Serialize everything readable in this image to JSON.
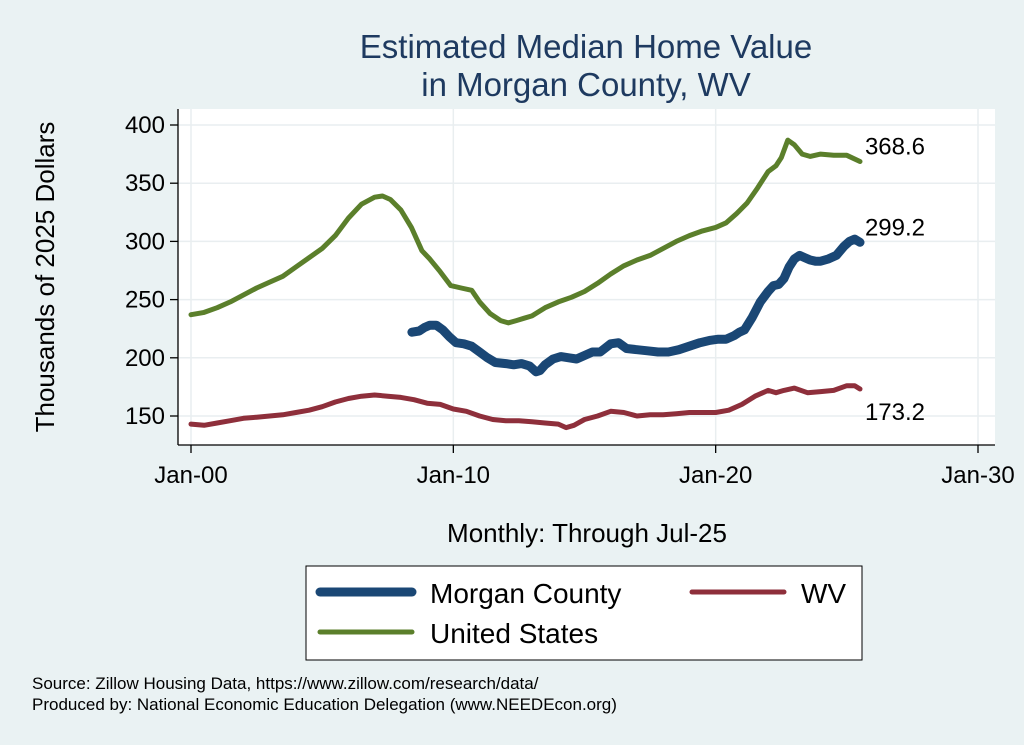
{
  "chart_data": {
    "type": "line",
    "title": [
      "Estimated Median Home Value",
      "in Morgan County, WV"
    ],
    "xlabel": "Monthly: Through Jul-25",
    "ylabel": "Thousands of 2025 Dollars",
    "x_ticks": [
      {
        "label": "Jan-00",
        "year": 2000
      },
      {
        "label": "Jan-10",
        "year": 2010
      },
      {
        "label": "Jan-20",
        "year": 2020
      },
      {
        "label": "Jan-30",
        "year": 2030
      }
    ],
    "y_ticks": [
      150,
      200,
      250,
      300,
      350,
      400
    ],
    "xlim": [
      1999.5,
      2030.1
    ],
    "ylim": [
      130,
      413
    ],
    "grid": true,
    "legend_position": "bottom",
    "series": [
      {
        "name": "Morgan County",
        "color": "#1a4775",
        "width": 9,
        "end_label": "299.2",
        "points": [
          [
            2008.42,
            222
          ],
          [
            2008.7,
            223
          ],
          [
            2008.9,
            226
          ],
          [
            2009.1,
            228
          ],
          [
            2009.35,
            228
          ],
          [
            2009.6,
            224
          ],
          [
            2009.85,
            218
          ],
          [
            2010.1,
            213
          ],
          [
            2010.4,
            212
          ],
          [
            2010.7,
            210
          ],
          [
            2011.0,
            205
          ],
          [
            2011.3,
            200
          ],
          [
            2011.6,
            196
          ],
          [
            2012.0,
            195
          ],
          [
            2012.3,
            194
          ],
          [
            2012.6,
            195
          ],
          [
            2012.9,
            193
          ],
          [
            2013.15,
            188
          ],
          [
            2013.3,
            189
          ],
          [
            2013.5,
            194
          ],
          [
            2013.8,
            199
          ],
          [
            2014.1,
            201
          ],
          [
            2014.4,
            200
          ],
          [
            2014.7,
            199
          ],
          [
            2015.0,
            202
          ],
          [
            2015.3,
            205
          ],
          [
            2015.6,
            205
          ],
          [
            2016.0,
            212
          ],
          [
            2016.3,
            213
          ],
          [
            2016.6,
            208
          ],
          [
            2017.0,
            207
          ],
          [
            2017.4,
            206
          ],
          [
            2017.8,
            205
          ],
          [
            2018.2,
            205
          ],
          [
            2018.6,
            207
          ],
          [
            2019.0,
            210
          ],
          [
            2019.4,
            213
          ],
          [
            2019.8,
            215
          ],
          [
            2020.1,
            216
          ],
          [
            2020.4,
            216
          ],
          [
            2020.7,
            219
          ],
          [
            2020.9,
            222
          ],
          [
            2021.1,
            224
          ],
          [
            2021.4,
            235
          ],
          [
            2021.7,
            248
          ],
          [
            2022.0,
            257
          ],
          [
            2022.2,
            262
          ],
          [
            2022.4,
            263
          ],
          [
            2022.6,
            268
          ],
          [
            2022.8,
            278
          ],
          [
            2023.0,
            285
          ],
          [
            2023.2,
            288
          ],
          [
            2023.4,
            286
          ],
          [
            2023.6,
            284
          ],
          [
            2023.8,
            283
          ],
          [
            2024.0,
            283
          ],
          [
            2024.3,
            285
          ],
          [
            2024.6,
            288
          ],
          [
            2024.9,
            296
          ],
          [
            2025.1,
            300
          ],
          [
            2025.3,
            302
          ],
          [
            2025.5,
            299.2
          ]
        ]
      },
      {
        "name": "WV",
        "color": "#8e2f3b",
        "width": 5,
        "end_label": "173.2",
        "points": [
          [
            2000.0,
            143
          ],
          [
            2000.5,
            142
          ],
          [
            2001.0,
            144
          ],
          [
            2001.5,
            146
          ],
          [
            2002.0,
            148
          ],
          [
            2002.5,
            149
          ],
          [
            2003.0,
            150
          ],
          [
            2003.5,
            151
          ],
          [
            2004.0,
            153
          ],
          [
            2004.5,
            155
          ],
          [
            2005.0,
            158
          ],
          [
            2005.5,
            162
          ],
          [
            2006.0,
            165
          ],
          [
            2006.5,
            167
          ],
          [
            2007.0,
            168
          ],
          [
            2007.5,
            167
          ],
          [
            2008.0,
            166
          ],
          [
            2008.5,
            164
          ],
          [
            2009.0,
            161
          ],
          [
            2009.5,
            160
          ],
          [
            2010.0,
            156
          ],
          [
            2010.5,
            154
          ],
          [
            2011.0,
            150
          ],
          [
            2011.5,
            147
          ],
          [
            2012.0,
            146
          ],
          [
            2012.5,
            146
          ],
          [
            2013.0,
            145
          ],
          [
            2013.5,
            144
          ],
          [
            2014.0,
            143
          ],
          [
            2014.3,
            140
          ],
          [
            2014.6,
            142
          ],
          [
            2015.0,
            147
          ],
          [
            2015.5,
            150
          ],
          [
            2016.0,
            154
          ],
          [
            2016.5,
            153
          ],
          [
            2017.0,
            150
          ],
          [
            2017.5,
            151
          ],
          [
            2018.0,
            151
          ],
          [
            2018.5,
            152
          ],
          [
            2019.0,
            153
          ],
          [
            2019.5,
            153
          ],
          [
            2020.0,
            153
          ],
          [
            2020.5,
            155
          ],
          [
            2021.0,
            160
          ],
          [
            2021.5,
            167
          ],
          [
            2022.0,
            172
          ],
          [
            2022.3,
            170
          ],
          [
            2022.6,
            172
          ],
          [
            2023.0,
            174
          ],
          [
            2023.5,
            170
          ],
          [
            2024.0,
            171
          ],
          [
            2024.5,
            172
          ],
          [
            2025.0,
            176
          ],
          [
            2025.3,
            176
          ],
          [
            2025.5,
            173.2
          ]
        ]
      },
      {
        "name": "United States",
        "color": "#5b7f2b",
        "width": 5,
        "end_label": "368.6",
        "points": [
          [
            2000.0,
            237
          ],
          [
            2000.5,
            239
          ],
          [
            2001.0,
            243
          ],
          [
            2001.5,
            248
          ],
          [
            2002.0,
            254
          ],
          [
            2002.5,
            260
          ],
          [
            2003.0,
            265
          ],
          [
            2003.5,
            270
          ],
          [
            2004.0,
            278
          ],
          [
            2004.5,
            286
          ],
          [
            2005.0,
            294
          ],
          [
            2005.5,
            305
          ],
          [
            2006.0,
            320
          ],
          [
            2006.5,
            332
          ],
          [
            2007.0,
            338
          ],
          [
            2007.3,
            339
          ],
          [
            2007.6,
            336
          ],
          [
            2008.0,
            327
          ],
          [
            2008.4,
            312
          ],
          [
            2008.8,
            292
          ],
          [
            2009.1,
            285
          ],
          [
            2009.5,
            274
          ],
          [
            2009.9,
            262
          ],
          [
            2010.3,
            260
          ],
          [
            2010.7,
            258
          ],
          [
            2011.0,
            248
          ],
          [
            2011.4,
            238
          ],
          [
            2011.8,
            232
          ],
          [
            2012.1,
            230
          ],
          [
            2012.4,
            232
          ],
          [
            2012.7,
            234
          ],
          [
            2013.0,
            236
          ],
          [
            2013.5,
            243
          ],
          [
            2014.0,
            248
          ],
          [
            2014.5,
            252
          ],
          [
            2015.0,
            257
          ],
          [
            2015.5,
            264
          ],
          [
            2016.0,
            272
          ],
          [
            2016.5,
            279
          ],
          [
            2017.0,
            284
          ],
          [
            2017.5,
            288
          ],
          [
            2018.0,
            294
          ],
          [
            2018.5,
            300
          ],
          [
            2019.0,
            305
          ],
          [
            2019.5,
            309
          ],
          [
            2020.0,
            312
          ],
          [
            2020.4,
            316
          ],
          [
            2020.8,
            324
          ],
          [
            2021.2,
            333
          ],
          [
            2021.6,
            346
          ],
          [
            2022.0,
            360
          ],
          [
            2022.3,
            365
          ],
          [
            2022.5,
            372
          ],
          [
            2022.75,
            387
          ],
          [
            2023.0,
            383
          ],
          [
            2023.3,
            375
          ],
          [
            2023.6,
            373
          ],
          [
            2024.0,
            375
          ],
          [
            2024.5,
            374
          ],
          [
            2025.0,
            374
          ],
          [
            2025.5,
            368.6
          ]
        ]
      }
    ],
    "legend": [
      {
        "name": "Morgan County",
        "color": "#1a4775",
        "width": 9
      },
      {
        "name": "WV",
        "color": "#8e2f3b",
        "width": 5
      },
      {
        "name": "United States",
        "color": "#5b7f2b",
        "width": 5
      }
    ]
  },
  "notes": {
    "source": "Source: Zillow Housing Data, https://www.zillow.com/research/data/",
    "producer": "Produced by: National Economic Education Delegation (www.NEEDEcon.org)"
  }
}
